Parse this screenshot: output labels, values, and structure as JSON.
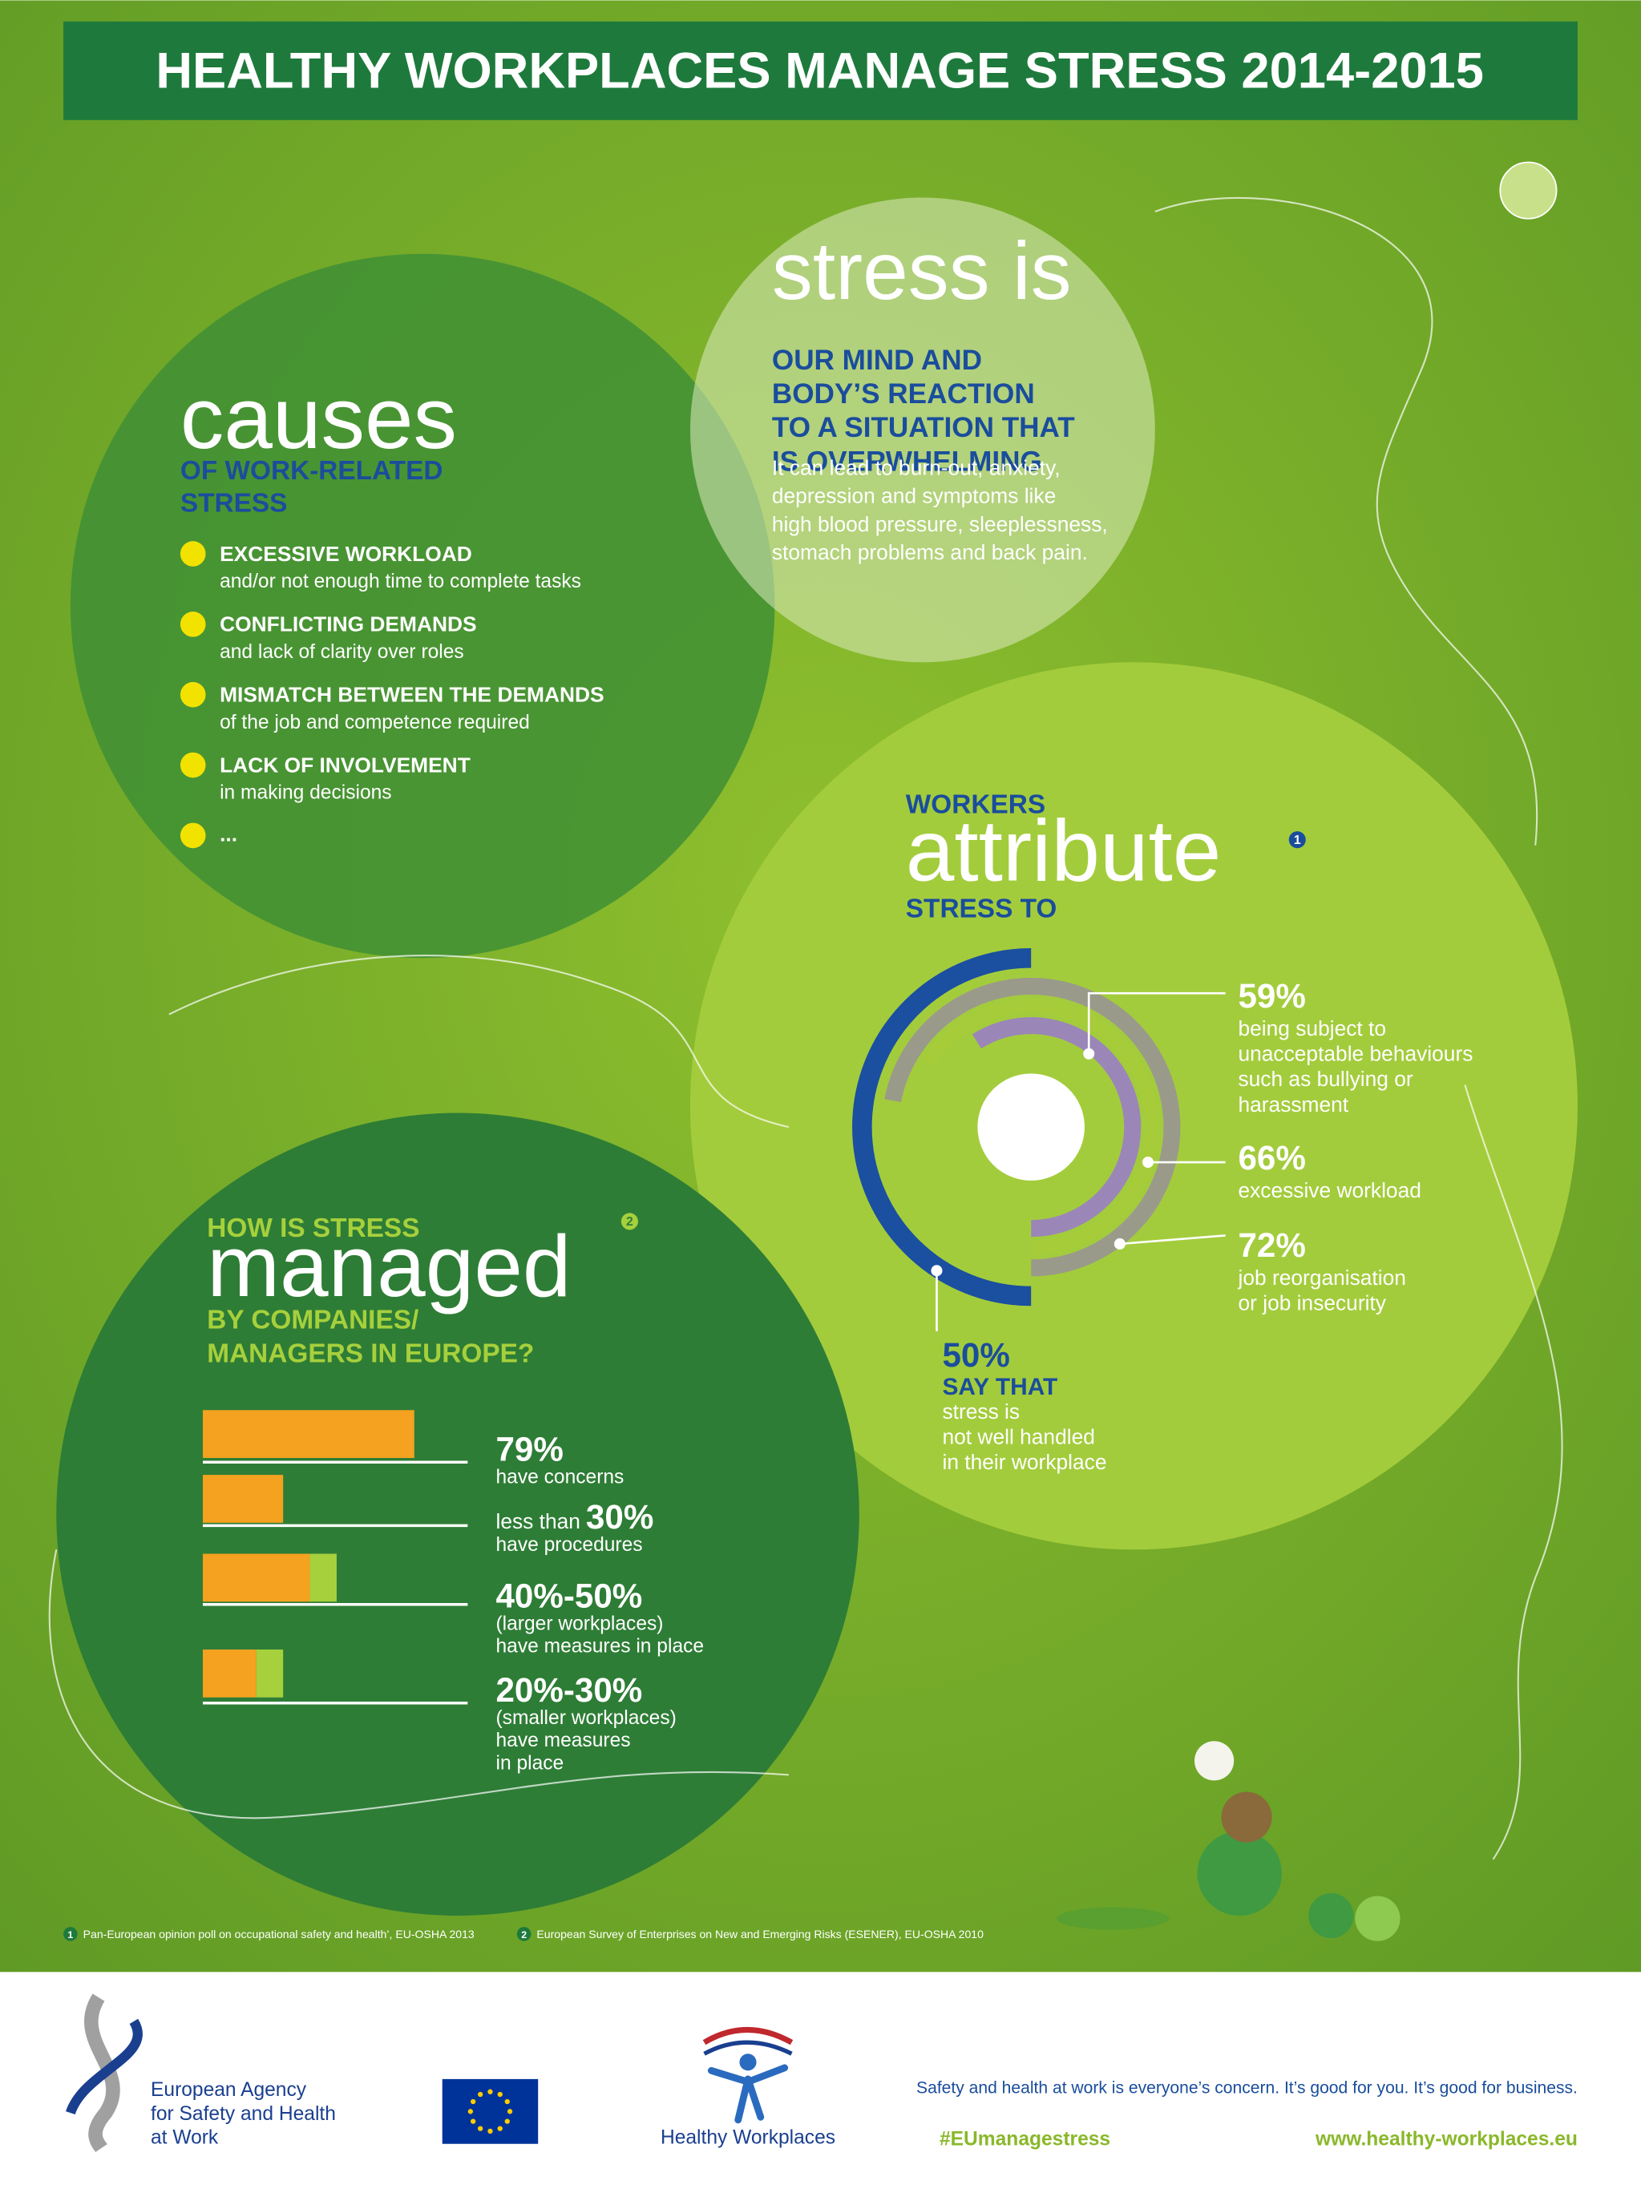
{
  "header": {
    "title": "HEALTHY WORKPLACES MANAGE STRESS 2014-2015"
  },
  "stress": {
    "heading": "stress is",
    "definition": [
      "OUR MIND AND",
      "BODY’S REACTION",
      "TO A SITUATION THAT",
      "IS OVERWHELMING"
    ],
    "body": [
      "It can lead to burn-out, anxiety,",
      "depression and symptoms like",
      "high blood pressure, sleeplessness,",
      "stomach problems and back pain."
    ]
  },
  "causes": {
    "heading": "causes",
    "subheading": [
      "OF WORK-RELATED",
      "STRESS"
    ],
    "items": [
      {
        "title": "EXCESSIVE WORKLOAD",
        "text": "and/or not enough time to complete tasks"
      },
      {
        "title": "CONFLICTING DEMANDS",
        "text": "and lack of clarity over roles"
      },
      {
        "title": "MISMATCH BETWEEN THE DEMANDS",
        "text": "of the job and competence required"
      },
      {
        "title": "LACK OF INVOLVEMENT",
        "text": "in making decisions"
      }
    ],
    "more": "..."
  },
  "attribute": {
    "pre": "WORKERS",
    "heading": "attribute",
    "note": "1",
    "post": "STRESS TO",
    "items": [
      {
        "value": 59,
        "label": "59%",
        "text": [
          "being subject to",
          "unacceptable behaviours",
          "such as bullying or",
          "harassment"
        ]
      },
      {
        "value": 66,
        "label": "66%",
        "text": [
          "excessive workload"
        ]
      },
      {
        "value": 72,
        "label": "72%",
        "text": [
          "job reorganisation",
          "or job insecurity"
        ]
      }
    ],
    "say": {
      "value": 50,
      "label": "50%",
      "title": "SAY THAT",
      "text": [
        "stress is",
        "not well handled",
        "in their workplace"
      ]
    }
  },
  "managed": {
    "pre": "HOW IS STRESS",
    "heading": "managed",
    "note": "2",
    "post": [
      "BY COMPANIES/",
      "MANAGERS IN EUROPE?"
    ],
    "items": [
      {
        "values": [
          79
        ],
        "label": "79%",
        "text": [
          "have concerns"
        ]
      },
      {
        "prefix": "less than",
        "values": [
          30
        ],
        "label": "30%",
        "text": [
          "have procedures"
        ]
      },
      {
        "values": [
          40,
          50
        ],
        "label": "40%-50%",
        "text": [
          "(larger workplaces)",
          "have measures in place"
        ]
      },
      {
        "values": [
          20,
          30
        ],
        "label": "20%-30%",
        "text": [
          "(smaller workplaces)",
          "have measures",
          "in place"
        ]
      }
    ]
  },
  "footnotes": [
    {
      "number": "1",
      "text": "Pan-European opinion poll on occupational safety and health’, EU-OSHA 2013"
    },
    {
      "number": "2",
      "text": "European Survey of Enterprises on New and Emerging Risks (ESENER), EU-OSHA 2010"
    }
  ],
  "footer": {
    "agency": [
      "European Agency",
      "for Safety and Health",
      "at Work"
    ],
    "campaign": "Healthy Workplaces",
    "tagline": "Safety and health at work is everyone’s concern. It’s good for you. It’s good for business.",
    "hashtag": "#EUmanagestress",
    "url": "www.healthy-workplaces.eu"
  }
}
